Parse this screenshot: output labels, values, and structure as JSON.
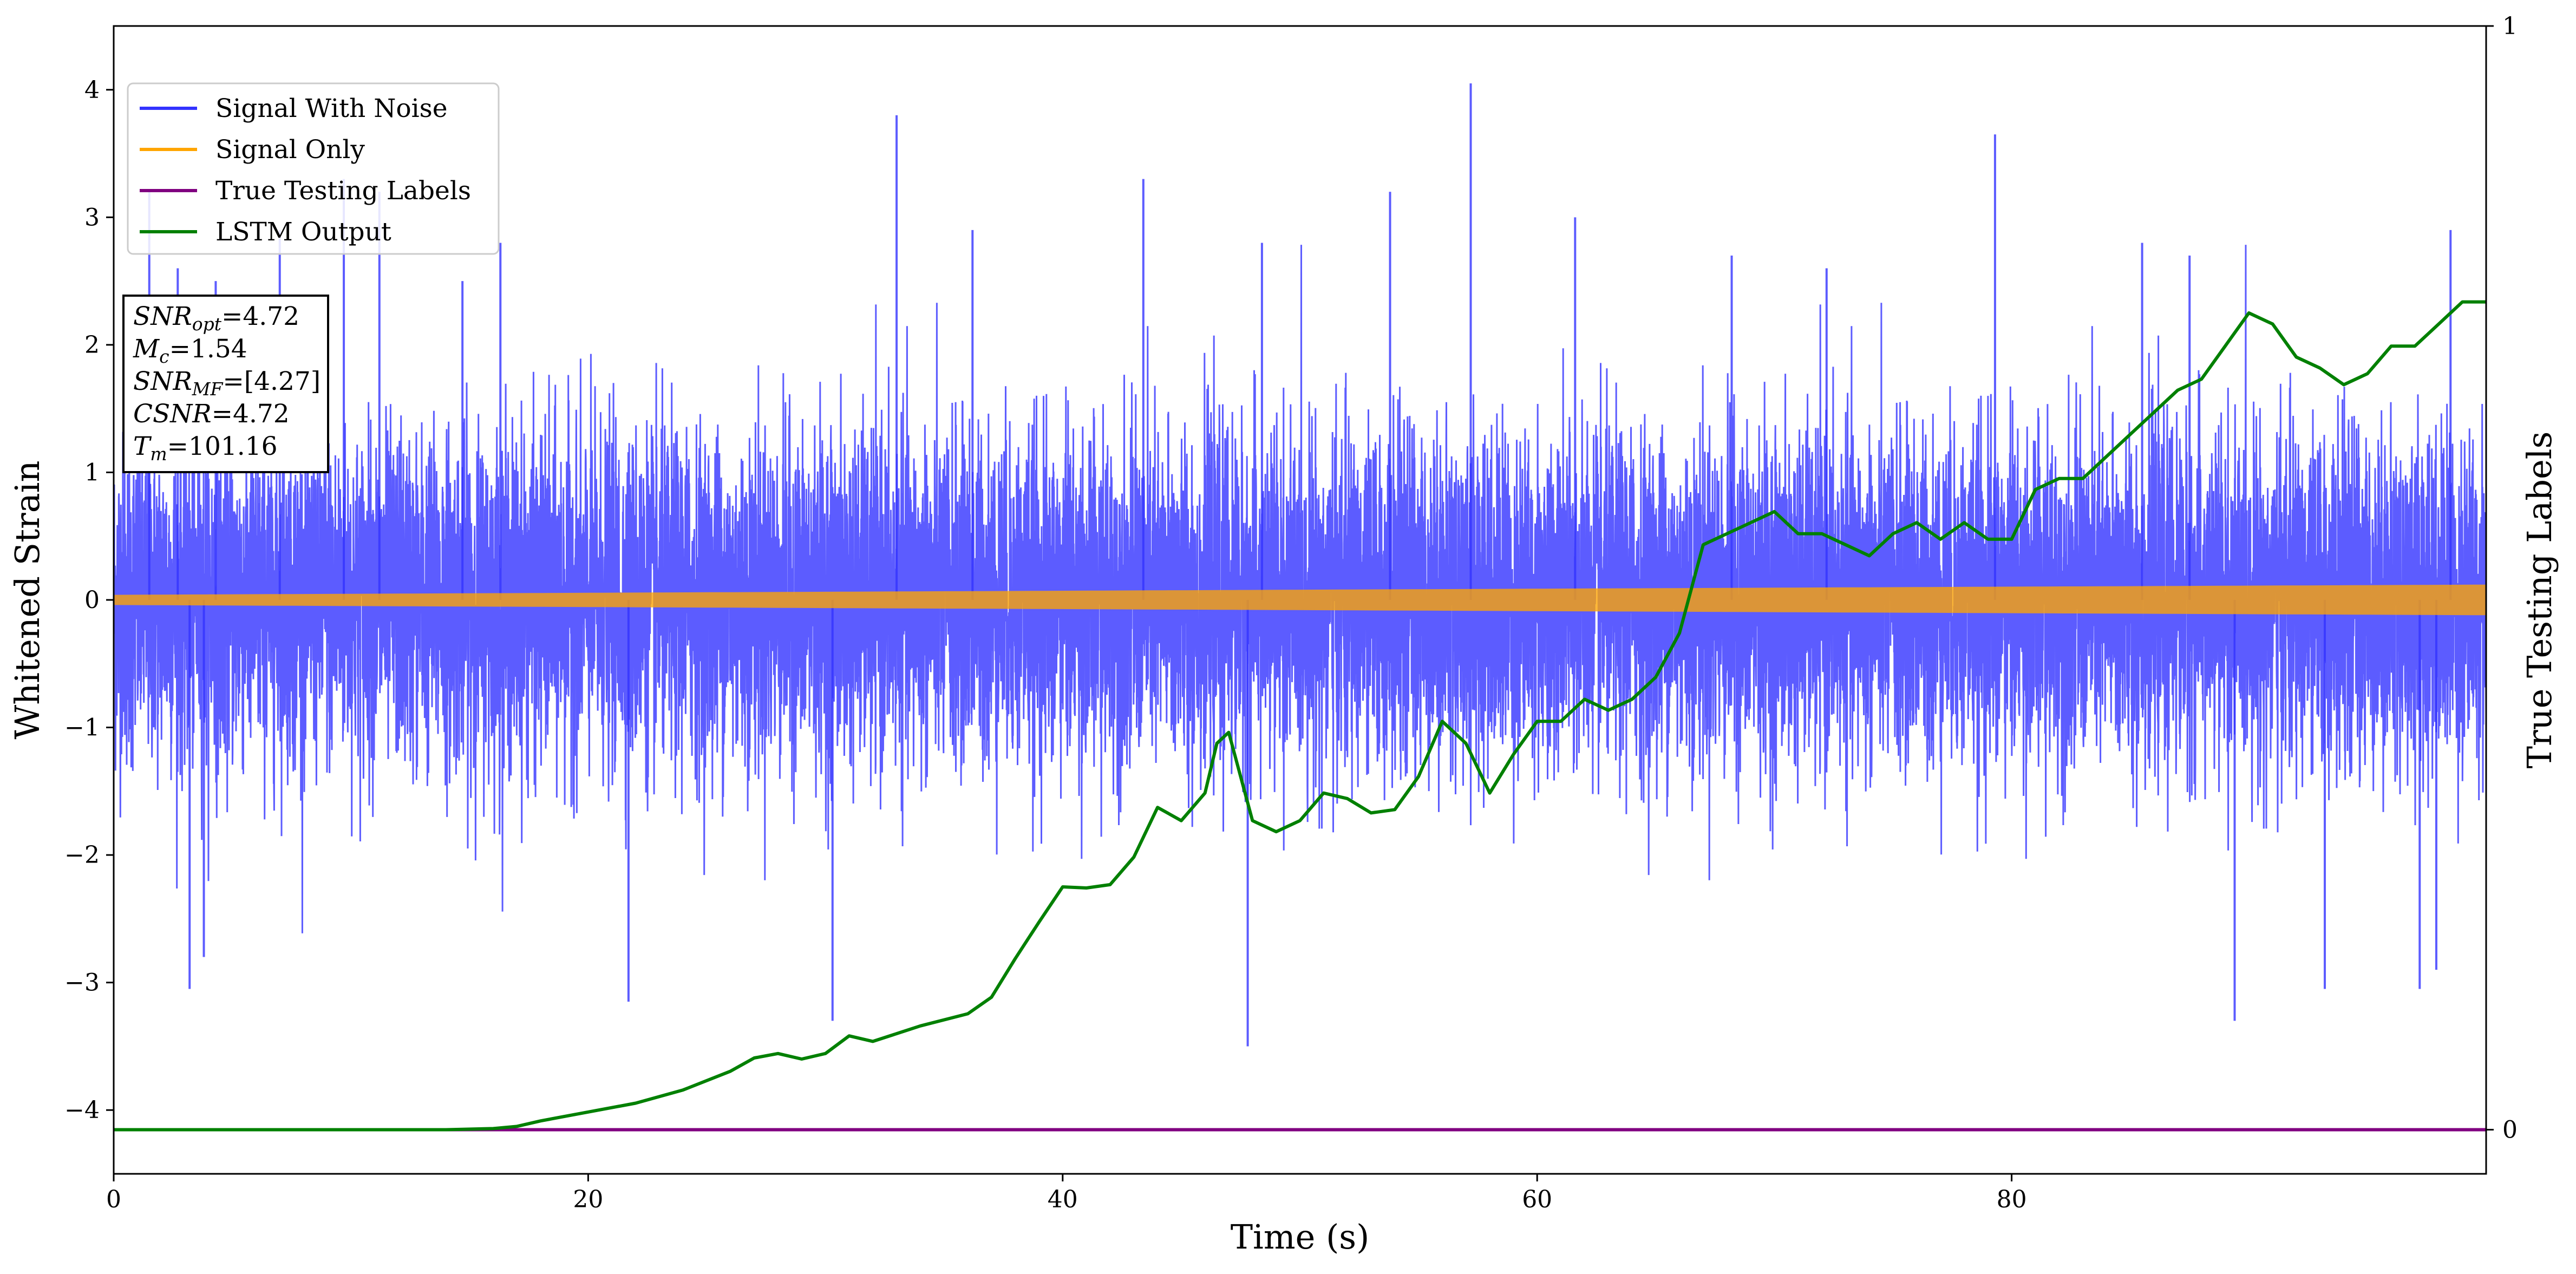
{
  "chart_data": {
    "type": "line",
    "title": "",
    "xlabel": "Time (s)",
    "ylabel": "Whitened Strain",
    "y2label": "True Testing Labels",
    "xlim": [
      0,
      100
    ],
    "ylim": [
      -4.5,
      4.5
    ],
    "y2lim": [
      -0.04,
      1.0
    ],
    "x_ticks": [
      0,
      20,
      40,
      60,
      80
    ],
    "y_ticks": [
      -4,
      -3,
      -2,
      -1,
      0,
      1,
      2,
      3,
      4
    ],
    "y2_ticks": [
      0,
      1
    ],
    "grid": false,
    "legend_position": "top-left",
    "legend": [
      "Signal With Noise",
      "Signal Only",
      "True Testing Labels",
      "LSTM Output"
    ],
    "annotation": {
      "lines": [
        {
          "var": "SNR",
          "sub": "opt",
          "value": "=4.72"
        },
        {
          "var": "M",
          "sub": "c",
          "value": "=1.54"
        },
        {
          "var": "SNR",
          "sub": "MF",
          "value": "=[4.27]"
        },
        {
          "var": "CSNR",
          "sub": "",
          "value": "=4.72"
        },
        {
          "var": "T",
          "sub": "m",
          "value": "=101.16"
        }
      ]
    },
    "series": [
      {
        "name": "Signal With Noise",
        "color": "#3333ff",
        "axis": "left",
        "kind": "noise",
        "sigma": 0.65,
        "range": [
          -3.5,
          4.05
        ],
        "peaks": [
          [
            1.5,
            3.2
          ],
          [
            2.7,
            2.6
          ],
          [
            4.3,
            2.5
          ],
          [
            7,
            2.9
          ],
          [
            9.7,
            3.3
          ],
          [
            11.2,
            3.2
          ],
          [
            14.7,
            2.5
          ],
          [
            16.3,
            2.8
          ],
          [
            33,
            3.8
          ],
          [
            36.2,
            2.9
          ],
          [
            43.4,
            3.3
          ],
          [
            48.4,
            2.8
          ],
          [
            53.8,
            3.2
          ],
          [
            57.2,
            4.05
          ],
          [
            61.6,
            3.0
          ],
          [
            68.2,
            2.7
          ],
          [
            72.2,
            2.6
          ],
          [
            79.3,
            3.65
          ],
          [
            85.5,
            2.8
          ],
          [
            87.5,
            2.7
          ],
          [
            98.5,
            2.9
          ],
          [
            3.2,
            -3.05
          ],
          [
            3.8,
            -2.8
          ],
          [
            21.7,
            -3.15
          ],
          [
            30.3,
            -3.3
          ],
          [
            47.8,
            -3.5
          ],
          [
            89.4,
            -3.3
          ],
          [
            93.2,
            -3.05
          ],
          [
            97.2,
            -3.05
          ],
          [
            97.9,
            -2.9
          ]
        ]
      },
      {
        "name": "Signal Only",
        "color": "#ffa500",
        "axis": "left",
        "kind": "band",
        "amplitude_start": 0.04,
        "amplitude_end": 0.12
      },
      {
        "name": "True Testing Labels",
        "color": "#800080",
        "axis": "right",
        "x": [
          0,
          100
        ],
        "values": [
          0,
          0
        ]
      },
      {
        "name": "LSTM Output",
        "color": "#008000",
        "axis": "right",
        "x": [
          0,
          2,
          6,
          10,
          14,
          16,
          17,
          18,
          20,
          22,
          24,
          26,
          27,
          28,
          29,
          30,
          31,
          32,
          34,
          36,
          37,
          38,
          39,
          40,
          41,
          42,
          43,
          44,
          45,
          46,
          46.5,
          47,
          48,
          49,
          50,
          51,
          52,
          53,
          54,
          55,
          56,
          57,
          58,
          59,
          60,
          61,
          62,
          63,
          64,
          65,
          66,
          67,
          68,
          69,
          70,
          71,
          72,
          73,
          74,
          75,
          76,
          77,
          78,
          79,
          80,
          81,
          82,
          83,
          84,
          85,
          86,
          87,
          88,
          89,
          90,
          91,
          92,
          93,
          94,
          95,
          96,
          97,
          98,
          99,
          100
        ],
        "values": [
          0.0,
          0.0,
          0.0,
          0.0,
          0.0,
          0.001,
          0.003,
          0.008,
          0.016,
          0.024,
          0.036,
          0.053,
          0.065,
          0.069,
          0.064,
          0.069,
          0.085,
          0.08,
          0.094,
          0.105,
          0.12,
          0.155,
          0.188,
          0.22,
          0.219,
          0.222,
          0.247,
          0.292,
          0.28,
          0.305,
          0.35,
          0.36,
          0.28,
          0.27,
          0.28,
          0.305,
          0.3,
          0.287,
          0.29,
          0.32,
          0.37,
          0.35,
          0.305,
          0.34,
          0.37,
          0.37,
          0.39,
          0.38,
          0.39,
          0.41,
          0.45,
          0.53,
          0.54,
          0.55,
          0.56,
          0.54,
          0.54,
          0.53,
          0.52,
          0.54,
          0.55,
          0.535,
          0.55,
          0.535,
          0.535,
          0.58,
          0.59,
          0.59,
          0.61,
          0.63,
          0.65,
          0.67,
          0.68,
          0.71,
          0.74,
          0.73,
          0.7,
          0.69,
          0.675,
          0.685,
          0.71,
          0.71,
          0.73,
          0.75,
          0.75
        ]
      }
    ]
  }
}
